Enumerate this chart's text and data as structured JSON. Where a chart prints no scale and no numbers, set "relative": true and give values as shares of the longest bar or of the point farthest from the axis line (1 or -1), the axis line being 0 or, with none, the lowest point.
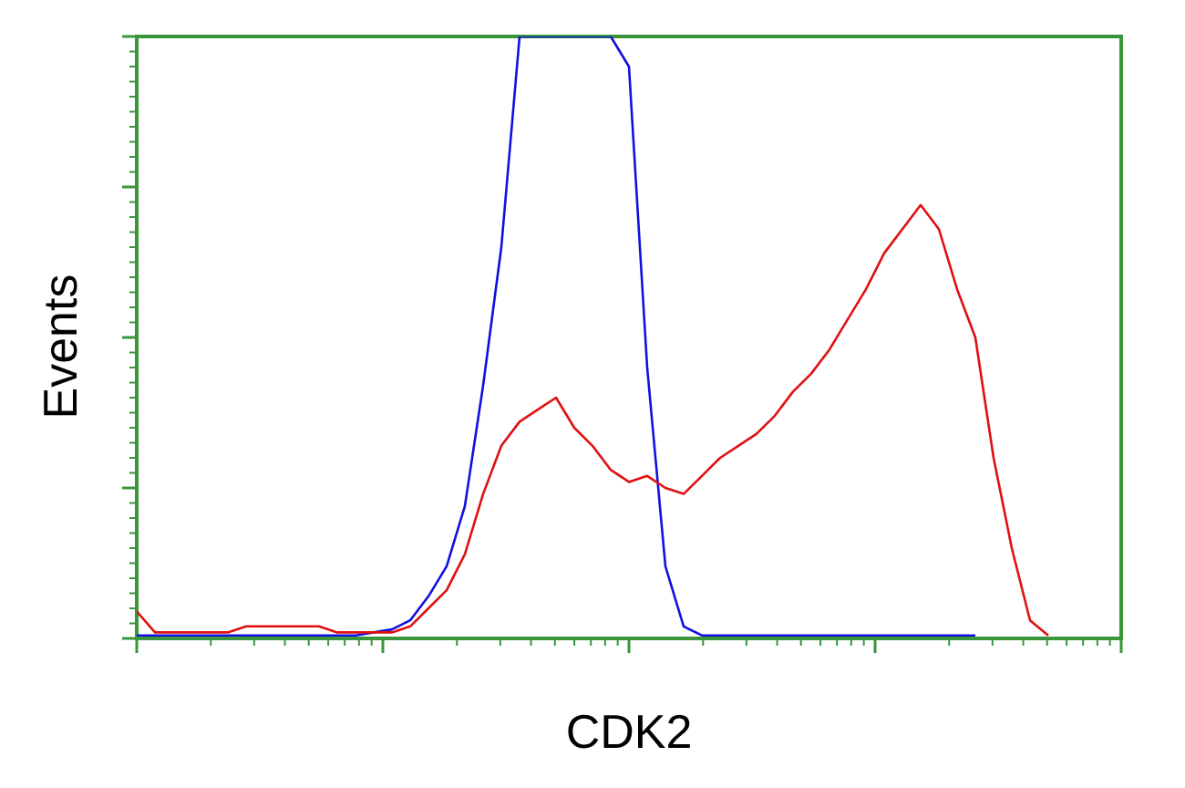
{
  "chart_data": {
    "type": "line",
    "relative": true,
    "xlabel": "CDK2",
    "ylabel": "Events",
    "line_style": "solid",
    "categories": [
      null,
      null,
      null,
      null,
      null,
      null,
      null,
      null,
      null,
      null,
      null,
      null,
      null,
      null,
      null,
      null,
      null,
      null,
      null,
      null,
      null,
      null,
      null,
      null,
      null,
      null,
      null,
      null,
      null,
      null,
      null,
      null,
      null,
      null,
      null,
      null,
      null,
      null,
      null,
      null,
      null,
      null,
      null,
      null,
      null,
      null,
      null,
      null,
      null,
      null,
      null,
      null,
      null,
      null,
      null
    ],
    "series": [
      {
        "color": "#1010e0",
        "values": [
          0.005,
          0.005,
          0.005,
          0.005,
          0.005,
          0.005,
          0.005,
          0.005,
          0.005,
          0.005,
          0.005,
          0.005,
          0.005,
          0.01,
          0.015,
          0.03,
          0.07,
          0.12,
          0.22,
          0.42,
          0.65,
          1,
          1,
          1,
          1,
          1,
          1,
          0.95,
          0.45,
          0.12,
          0.02,
          0.005,
          0.005,
          0.005,
          0.005,
          0.005,
          0.005,
          0.005,
          0.005,
          0.005,
          0.005,
          0.005,
          0.005,
          0.005,
          0.005,
          0.005,
          0.005,
          null,
          null,
          null,
          null,
          null,
          null,
          null,
          null
        ]
      },
      {
        "color": "#e01010",
        "values": [
          0.045,
          0.01,
          0.01,
          0.01,
          0.01,
          0.01,
          0.02,
          0.02,
          0.02,
          0.02,
          0.02,
          0.01,
          0.01,
          0.01,
          0.01,
          0.02,
          0.05,
          0.08,
          0.14,
          0.24,
          0.32,
          0.36,
          0.38,
          0.4,
          0.35,
          0.32,
          0.28,
          0.26,
          0.27,
          0.25,
          0.24,
          0.27,
          0.3,
          0.32,
          0.34,
          0.37,
          0.41,
          0.44,
          0.48,
          0.53,
          0.58,
          0.64,
          0.68,
          0.72,
          0.68,
          0.58,
          0.5,
          0.3,
          0.15,
          0.03,
          0.005,
          null,
          null,
          null,
          null
        ]
      }
    ]
  }
}
